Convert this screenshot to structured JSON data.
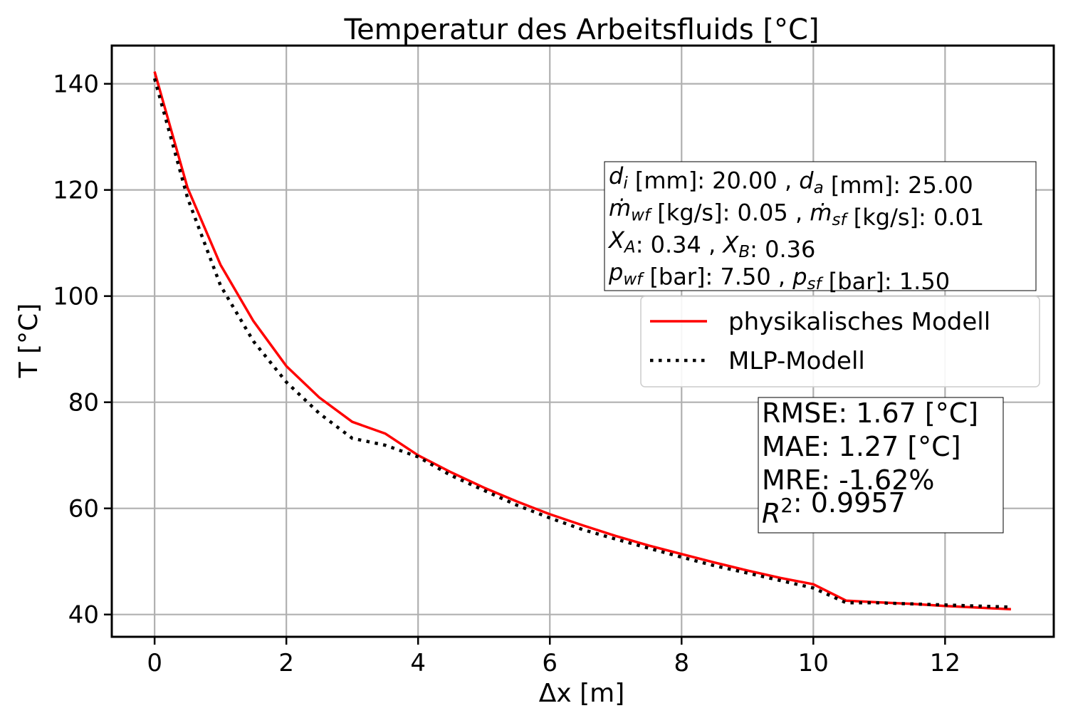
{
  "chart_data": {
    "type": "line",
    "title": "Temperatur des Arbeitsfluids [°C]",
    "xlabel": "Δx [m]",
    "ylabel": "T [°C]",
    "xlim": [
      -0.65,
      13.65
    ],
    "ylim": [
      35.8,
      147.2
    ],
    "xticks": [
      0,
      2,
      4,
      6,
      8,
      10,
      12
    ],
    "yticks": [
      40,
      60,
      80,
      100,
      120,
      140
    ],
    "grid": true,
    "legend_position": "center-right",
    "series": [
      {
        "name": "physikalisches Modell",
        "color": "#ff0000",
        "style": "solid",
        "x": [
          0,
          0.5,
          1,
          1.5,
          2,
          2.5,
          3,
          3.5,
          4,
          4.5,
          5,
          5.5,
          6,
          6.5,
          7,
          7.5,
          8,
          8.5,
          9,
          9.5,
          10,
          10.5,
          11,
          11.5,
          12,
          12.5,
          13
        ],
        "y": [
          142.3,
          120.4,
          105.9,
          95.3,
          86.8,
          80.9,
          76.3,
          74.1,
          70.0,
          66.8,
          63.9,
          61.3,
          58.9,
          56.8,
          54.8,
          53.0,
          51.4,
          49.8,
          48.3,
          46.9,
          45.7,
          42.6,
          42.3,
          42.0,
          41.6,
          41.3,
          41.0
        ]
      },
      {
        "name": "MLP-Modell",
        "color": "#000000",
        "style": "dotted",
        "x": [
          0,
          0.5,
          1,
          1.5,
          2,
          2.5,
          3,
          3.5,
          4,
          4.5,
          5,
          5.5,
          6,
          6.5,
          7,
          7.5,
          8,
          8.5,
          9,
          9.5,
          10,
          10.5,
          11,
          11.5,
          12,
          12.5,
          13
        ],
        "y": [
          141.0,
          118.5,
          102.0,
          91.5,
          83.8,
          77.9,
          73.2,
          71.9,
          69.7,
          66.2,
          63.4,
          60.6,
          58.2,
          56.0,
          54.2,
          52.5,
          50.8,
          49.2,
          47.8,
          46.4,
          45.0,
          42.2,
          42.2,
          42.0,
          41.8,
          41.6,
          41.4
        ]
      }
    ],
    "annotations": {
      "params": [
        {
          "parts": [
            {
              "t": "d",
              "i": true
            },
            {
              "t": "i",
              "i": true,
              "sub": true
            },
            {
              "t": " [mm]: 20.00 , "
            },
            {
              "t": "d",
              "i": true
            },
            {
              "t": "a",
              "i": true,
              "sub": true
            },
            {
              "t": " [mm]: 25.00"
            }
          ]
        },
        {
          "parts": [
            {
              "t": "ṁ",
              "i": true
            },
            {
              "t": "wf",
              "i": true,
              "sub": true
            },
            {
              "t": " [kg/s]: 0.05 , "
            },
            {
              "t": "ṁ",
              "i": true
            },
            {
              "t": "sf",
              "i": true,
              "sub": true
            },
            {
              "t": " [kg/s]: 0.01"
            }
          ]
        },
        {
          "parts": [
            {
              "t": "X",
              "i": true
            },
            {
              "t": "A",
              "i": true,
              "sub": true
            },
            {
              "t": ": 0.34 , "
            },
            {
              "t": "X",
              "i": true
            },
            {
              "t": "B",
              "i": true,
              "sub": true
            },
            {
              "t": ": 0.36"
            }
          ]
        },
        {
          "parts": [
            {
              "t": "p",
              "i": true
            },
            {
              "t": "wf",
              "i": true,
              "sub": true
            },
            {
              "t": " [bar]: 7.50 , "
            },
            {
              "t": "p",
              "i": true
            },
            {
              "t": "sf",
              "i": true,
              "sub": true
            },
            {
              "t": " [bar]: 1.50"
            }
          ]
        }
      ],
      "metrics": [
        {
          "parts": [
            {
              "t": "RMSE: 1.67 [°C]"
            }
          ]
        },
        {
          "parts": [
            {
              "t": "MAE: 1.27 [°C]"
            }
          ]
        },
        {
          "parts": [
            {
              "t": "MRE: -1.62%"
            }
          ]
        },
        {
          "parts": [
            {
              "t": "R",
              "i": true
            },
            {
              "t": "2",
              "sup": true
            },
            {
              "t": ": 0.9957"
            }
          ]
        }
      ]
    }
  }
}
